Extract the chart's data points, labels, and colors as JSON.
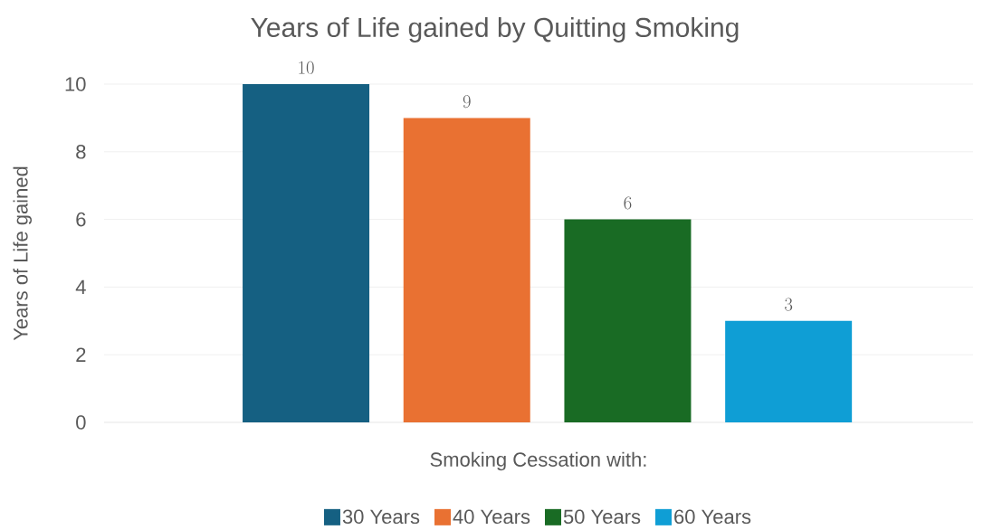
{
  "chart_data": {
    "type": "bar",
    "title": "Years of Life gained by Quitting Smoking",
    "xlabel": "Smoking Cessation with:",
    "ylabel": "Years of Life gained",
    "categories": [
      null
    ],
    "series": [
      {
        "name": "30 Years",
        "color": "#156082",
        "values": [
          10
        ]
      },
      {
        "name": "40 Years",
        "color": "#e97132",
        "values": [
          9
        ]
      },
      {
        "name": "50 Years",
        "color": "#196b24",
        "values": [
          6
        ]
      },
      {
        "name": "60 Years",
        "color": "#0f9ed5",
        "values": [
          3
        ]
      }
    ],
    "ylim": [
      0,
      10
    ],
    "yticks": [
      0,
      2,
      4,
      6,
      8,
      10
    ],
    "grid": "y",
    "legend": "bottom",
    "data_labels": true
  }
}
